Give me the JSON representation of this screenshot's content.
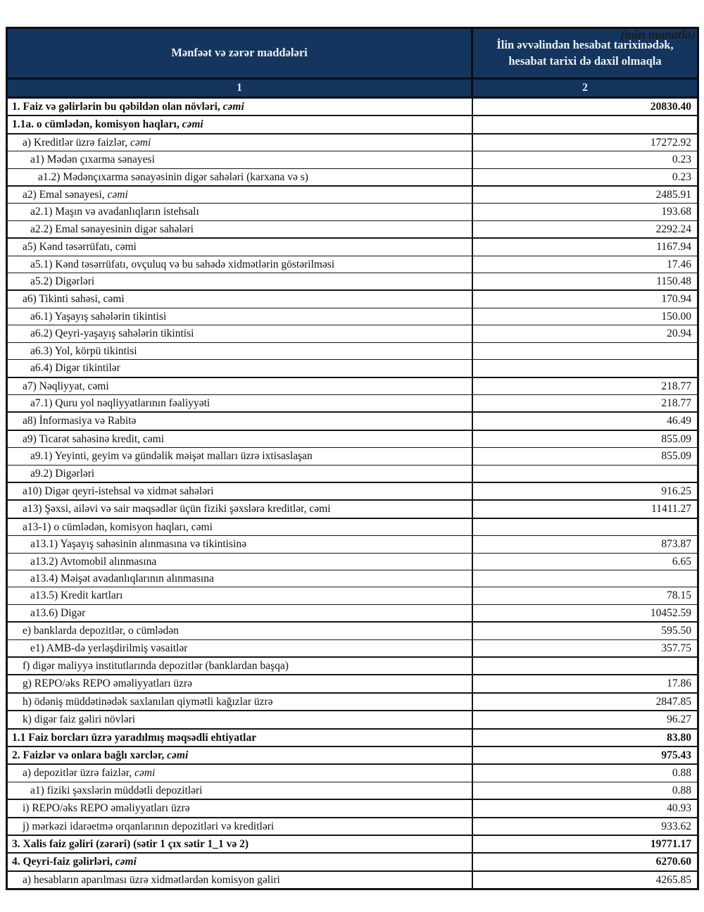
{
  "note": "(min manatla)",
  "colors": {
    "header_bg": "#14355e",
    "header_text": "#eef0f2",
    "border": "#161616"
  },
  "table": {
    "header": {
      "col1": "Mənfəət və zərər maddələri",
      "col2_line1": "İlin əvvəlindən hesabat tarixinədək,",
      "col2_line2": "hesabat tarixi də daxil olmaqla",
      "num1": "1",
      "num2": "2"
    },
    "rows": [
      {
        "label": "1. Faiz və gəlirlərin bu qəbildən olan növləri, ",
        "italic_suffix": "cəmi",
        "value": "20830.40",
        "level": 0,
        "bold": true
      },
      {
        "label": "1.1a. o cümlədən, komisyon haqları, ",
        "italic_suffix": "cəmi",
        "value": "",
        "level": 0,
        "bold": true
      },
      {
        "label": "a) Kreditlər üzrə faizlər, ",
        "italic_suffix": "cəmi",
        "value": "17272.92",
        "level": 1,
        "bold": false
      },
      {
        "label": "a1) Mədən çıxarma sənayesi",
        "italic_suffix": "",
        "value": "0.23",
        "level": 2,
        "bold": false
      },
      {
        "label": "a1.2) Mədənçıxarma sənayəsinin digər sahələri (karxana və s)",
        "italic_suffix": "",
        "value": "0.23",
        "level": 3,
        "bold": false
      },
      {
        "label": "a2) Emal sənayesi, ",
        "italic_suffix": "cəmi",
        "value": "2485.91",
        "level": 1,
        "bold": false
      },
      {
        "label": "a2.1) Maşın və avadanlıqların istehsalı",
        "italic_suffix": "",
        "value": "193.68",
        "level": 2,
        "bold": false
      },
      {
        "label": "a2.2) Emal sənayesinin digər sahələri",
        "italic_suffix": "",
        "value": "2292.24",
        "level": 2,
        "bold": false
      },
      {
        "label": "a5) Kənd təsərrüfatı, cəmi",
        "italic_suffix": "",
        "value": "1167.94",
        "level": 1,
        "bold": false
      },
      {
        "label": "a5.1) Kənd təsərrüfatı, ovçuluq və bu sahədə xidmətlərin göstərilməsi",
        "italic_suffix": "",
        "value": "17.46",
        "level": 2,
        "bold": false
      },
      {
        "label": "a5.2) Digərləri",
        "italic_suffix": "",
        "value": "1150.48",
        "level": 2,
        "bold": false
      },
      {
        "label": "a6) Tikinti sahəsi, cəmi",
        "italic_suffix": "",
        "value": "170.94",
        "level": 1,
        "bold": false
      },
      {
        "label": "a6.1) Yaşayış sahələrin tikintisi",
        "italic_suffix": "",
        "value": "150.00",
        "level": 2,
        "bold": false
      },
      {
        "label": "a6.2) Qeyri-yaşayış sahələrin tikintisi",
        "italic_suffix": "",
        "value": "20.94",
        "level": 2,
        "bold": false
      },
      {
        "label": "a6.3) Yol, körpü tikintisi",
        "italic_suffix": "",
        "value": "",
        "level": 2,
        "bold": false
      },
      {
        "label": "a6.4) Digər tikintilər",
        "italic_suffix": "",
        "value": "",
        "level": 2,
        "bold": false
      },
      {
        "label": "a7) Nəqliyyat, cəmi",
        "italic_suffix": "",
        "value": "218.77",
        "level": 1,
        "bold": false
      },
      {
        "label": "a7.1) Quru yol nəqliyyatlarının fəaliyyəti",
        "italic_suffix": "",
        "value": "218.77",
        "level": 2,
        "bold": false
      },
      {
        "label": "a8)  İnformasiya və Rabitə",
        "italic_suffix": "",
        "value": "46.49",
        "level": 1,
        "bold": false
      },
      {
        "label": "a9) Ticarət sahəsinə kredit, cəmi",
        "italic_suffix": "",
        "value": "855.09",
        "level": 1,
        "bold": false
      },
      {
        "label": "a9.1) Yeyinti, geyim və gündəlik məişət malları üzrə ixtisaslaşan",
        "italic_suffix": "",
        "value": "855.09",
        "level": 2,
        "bold": false
      },
      {
        "label": "a9.2) Digərləri",
        "italic_suffix": "",
        "value": "",
        "level": 2,
        "bold": false
      },
      {
        "label": "a10) Digər qeyri-istehsal və xidmət sahələri",
        "italic_suffix": "",
        "value": "916.25",
        "level": 1,
        "bold": false
      },
      {
        "label": "a13) Şəxsi, ailəvi və sair məqsədlər üçün fiziki şəxslərə kreditlər, cəmi",
        "italic_suffix": "",
        "value": "11411.27",
        "level": 1,
        "bold": false
      },
      {
        "label": "a13-1) o cümlədən, komisyon haqları, cəmi",
        "italic_suffix": "",
        "value": "",
        "level": 1,
        "bold": false
      },
      {
        "label": "a13.1) Yaşayış sahəsinin alınmasına və tikintisinə",
        "italic_suffix": "",
        "value": "873.87",
        "level": 2,
        "bold": false
      },
      {
        "label": "a13.2) Avtomobil alınmasına",
        "italic_suffix": "",
        "value": "6.65",
        "level": 2,
        "bold": false
      },
      {
        "label": "a13.4) Məişət avadanlıqlarının alınmasına",
        "italic_suffix": "",
        "value": "",
        "level": 2,
        "bold": false
      },
      {
        "label": "a13.5) Kredit kartları",
        "italic_suffix": "",
        "value": "78.15",
        "level": 2,
        "bold": false
      },
      {
        "label": "a13.6) Digər",
        "italic_suffix": "",
        "value": "10452.59",
        "level": 2,
        "bold": false
      },
      {
        "label": "e) banklarda depozitlər, o cümlədən",
        "italic_suffix": "",
        "value": "595.50",
        "level": 1,
        "bold": false
      },
      {
        "label": "e1)  AMB-də yerləşdirilmiş vəsaitlər",
        "italic_suffix": "",
        "value": "357.75",
        "level": 2,
        "bold": false
      },
      {
        "label": "f) digər maliyyə institutlarında depozitlər (banklardan başqa)",
        "italic_suffix": "",
        "value": "",
        "level": 1,
        "bold": false
      },
      {
        "label": "g) REPO/əks REPO əməliyyatları üzrə",
        "italic_suffix": "",
        "value": "17.86",
        "level": 1,
        "bold": false
      },
      {
        "label": "h) ödəniş müddətinədək saxlanılan qiymətli kağızlar üzrə",
        "italic_suffix": "",
        "value": "2847.85",
        "level": 1,
        "bold": false
      },
      {
        "label": "k) digər faiz gəliri növləri",
        "italic_suffix": "",
        "value": "96.27",
        "level": 1,
        "bold": false
      },
      {
        "label": "1.1 Faiz borcları üzrə yaradılmış məqsədli ehtiyatlar",
        "italic_suffix": "",
        "value": "83.80",
        "level": 0,
        "bold": true
      },
      {
        "label": "2. Faizlər və onlara bağlı xərclər, ",
        "italic_suffix": "cəmi",
        "value": "975.43",
        "level": 0,
        "bold": true
      },
      {
        "label": "a) depozitlər üzrə faizlər, ",
        "italic_suffix": "cəmi",
        "value": "0.88",
        "level": 1,
        "bold": false
      },
      {
        "label": "a1) fiziki şəxslərin müddətli depozitləri",
        "italic_suffix": "",
        "value": "0.88",
        "level": 2,
        "bold": false
      },
      {
        "label": "i) REPO/əks REPO əməliyyatları üzrə",
        "italic_suffix": "",
        "value": "40.93",
        "level": 1,
        "bold": false
      },
      {
        "label": "j) mərkəzi idarəetmə orqanlarının depozitləri və kreditləri",
        "italic_suffix": "",
        "value": "933.62",
        "level": 1,
        "bold": false
      },
      {
        "label": "3. Xalis faiz gəliri (zərəri) (sətir 1 çıx sətir 1_1 və 2)",
        "italic_suffix": "",
        "value": "19771.17",
        "level": 0,
        "bold": true
      },
      {
        "label": "4. Qeyri-faiz gəlirləri, ",
        "italic_suffix": "cəmi",
        "value": "6270.60",
        "level": 0,
        "bold": true
      },
      {
        "label": "a) hesabların aparılması üzrə xidmətlərdən komisyon gəliri",
        "italic_suffix": "",
        "value": "4265.85",
        "level": 1,
        "bold": false
      }
    ]
  }
}
